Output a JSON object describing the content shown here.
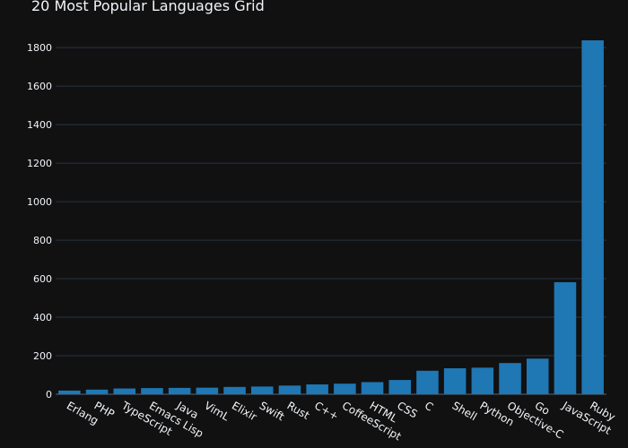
{
  "chart_data": {
    "type": "bar",
    "title": "20 Most Popular Languages Grid",
    "xlabel": "",
    "ylabel": "",
    "categories": [
      "Erlang",
      "PHP",
      "TypeScript",
      "Emacs Lisp",
      "Java",
      "VimL",
      "Elixir",
      "Swift",
      "Rust",
      "C++",
      "CoffeeScript",
      "HTML",
      "CSS",
      "C",
      "Shell",
      "Python",
      "Objective-C",
      "Go",
      "JavaScript",
      "Ruby"
    ],
    "values": [
      19,
      24,
      30,
      32,
      33,
      34,
      38,
      40,
      45,
      51,
      55,
      63,
      74,
      122,
      135,
      138,
      162,
      185,
      582,
      1838
    ],
    "ylim": [
      0,
      1838
    ],
    "yticks": [
      0,
      200,
      400,
      600,
      800,
      1000,
      1200,
      1400,
      1600,
      1800
    ],
    "grid": true,
    "colors": {
      "bar": "#1f77b4",
      "background": "#111111",
      "grid": "#283442",
      "text": "#f2f5fa"
    }
  }
}
